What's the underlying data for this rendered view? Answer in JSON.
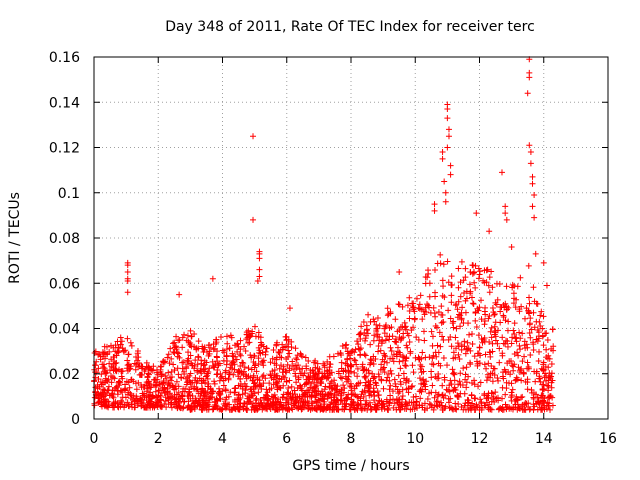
{
  "chart_data": {
    "type": "scatter",
    "title": "Day 348 of 2011, Rate Of TEC Index for receiver terc",
    "xlabel": "GPS time / hours",
    "ylabel": "ROTI / TECUs",
    "xlim": [
      0,
      16
    ],
    "ylim": [
      0,
      0.16
    ],
    "x_ticks": [
      0,
      2,
      4,
      6,
      8,
      10,
      12,
      14,
      16
    ],
    "y_ticks": [
      0,
      0.02,
      0.04,
      0.06,
      0.08,
      0.1,
      0.12,
      0.14,
      0.16
    ],
    "x_tick_labels": [
      "0",
      "2",
      "4",
      "6",
      "8",
      "10",
      "12",
      "14",
      "16"
    ],
    "y_tick_labels": [
      "0",
      "0.02",
      "0.04",
      "0.06",
      "0.08",
      "0.1",
      "0.12",
      "0.14",
      "0.16"
    ],
    "grid": true,
    "marker": "+",
    "color": "#ff0000",
    "data_range_x": [
      0,
      14.3
    ],
    "series": [
      {
        "name": "ROTI",
        "description": "dense point cloud; baseline ~0.005-0.03 TECU/s with spikes",
        "notable_points": [
          {
            "x": 1.05,
            "y": 0.069
          },
          {
            "x": 1.05,
            "y": 0.068
          },
          {
            "x": 1.05,
            "y": 0.065
          },
          {
            "x": 1.05,
            "y": 0.062
          },
          {
            "x": 1.05,
            "y": 0.061
          },
          {
            "x": 1.05,
            "y": 0.056
          },
          {
            "x": 2.65,
            "y": 0.055
          },
          {
            "x": 3.7,
            "y": 0.062
          },
          {
            "x": 4.95,
            "y": 0.125
          },
          {
            "x": 4.95,
            "y": 0.088
          },
          {
            "x": 5.15,
            "y": 0.074
          },
          {
            "x": 5.15,
            "y": 0.073
          },
          {
            "x": 5.15,
            "y": 0.071
          },
          {
            "x": 5.15,
            "y": 0.066
          },
          {
            "x": 5.15,
            "y": 0.063
          },
          {
            "x": 5.1,
            "y": 0.061
          },
          {
            "x": 6.1,
            "y": 0.049
          },
          {
            "x": 9.5,
            "y": 0.065
          },
          {
            "x": 10.6,
            "y": 0.095
          },
          {
            "x": 10.6,
            "y": 0.092
          },
          {
            "x": 10.85,
            "y": 0.118
          },
          {
            "x": 10.85,
            "y": 0.115
          },
          {
            "x": 10.9,
            "y": 0.105
          },
          {
            "x": 10.95,
            "y": 0.1
          },
          {
            "x": 10.95,
            "y": 0.096
          },
          {
            "x": 11.0,
            "y": 0.139
          },
          {
            "x": 11.0,
            "y": 0.137
          },
          {
            "x": 11.0,
            "y": 0.133
          },
          {
            "x": 11.05,
            "y": 0.128
          },
          {
            "x": 11.05,
            "y": 0.125
          },
          {
            "x": 11.0,
            "y": 0.12
          },
          {
            "x": 11.1,
            "y": 0.112
          },
          {
            "x": 11.1,
            "y": 0.108
          },
          {
            "x": 11.9,
            "y": 0.091
          },
          {
            "x": 12.3,
            "y": 0.083
          },
          {
            "x": 12.7,
            "y": 0.109
          },
          {
            "x": 12.8,
            "y": 0.094
          },
          {
            "x": 12.8,
            "y": 0.091
          },
          {
            "x": 12.85,
            "y": 0.088
          },
          {
            "x": 13.0,
            "y": 0.076
          },
          {
            "x": 13.55,
            "y": 0.159
          },
          {
            "x": 13.55,
            "y": 0.153
          },
          {
            "x": 13.55,
            "y": 0.151
          },
          {
            "x": 13.5,
            "y": 0.144
          },
          {
            "x": 13.55,
            "y": 0.121
          },
          {
            "x": 13.6,
            "y": 0.118
          },
          {
            "x": 13.6,
            "y": 0.113
          },
          {
            "x": 13.65,
            "y": 0.107
          },
          {
            "x": 13.65,
            "y": 0.104
          },
          {
            "x": 13.7,
            "y": 0.099
          },
          {
            "x": 13.65,
            "y": 0.094
          },
          {
            "x": 13.7,
            "y": 0.089
          },
          {
            "x": 13.75,
            "y": 0.073
          },
          {
            "x": 14.0,
            "y": 0.069
          },
          {
            "x": 14.1,
            "y": 0.059
          }
        ],
        "envelope": [
          {
            "x": 0.0,
            "lo": 0.006,
            "hi": 0.03
          },
          {
            "x": 0.5,
            "lo": 0.005,
            "hi": 0.034
          },
          {
            "x": 1.0,
            "lo": 0.005,
            "hi": 0.038
          },
          {
            "x": 1.5,
            "lo": 0.005,
            "hi": 0.028
          },
          {
            "x": 2.0,
            "lo": 0.005,
            "hi": 0.022
          },
          {
            "x": 2.5,
            "lo": 0.005,
            "hi": 0.036
          },
          {
            "x": 3.0,
            "lo": 0.004,
            "hi": 0.04
          },
          {
            "x": 3.5,
            "lo": 0.004,
            "hi": 0.032
          },
          {
            "x": 4.0,
            "lo": 0.004,
            "hi": 0.038
          },
          {
            "x": 4.5,
            "lo": 0.004,
            "hi": 0.036
          },
          {
            "x": 5.0,
            "lo": 0.004,
            "hi": 0.042
          },
          {
            "x": 5.5,
            "lo": 0.004,
            "hi": 0.032
          },
          {
            "x": 6.0,
            "lo": 0.004,
            "hi": 0.038
          },
          {
            "x": 6.5,
            "lo": 0.004,
            "hi": 0.028
          },
          {
            "x": 7.0,
            "lo": 0.004,
            "hi": 0.025
          },
          {
            "x": 7.5,
            "lo": 0.004,
            "hi": 0.03
          },
          {
            "x": 8.0,
            "lo": 0.004,
            "hi": 0.036
          },
          {
            "x": 8.5,
            "lo": 0.004,
            "hi": 0.046
          },
          {
            "x": 9.0,
            "lo": 0.004,
            "hi": 0.05
          },
          {
            "x": 9.5,
            "lo": 0.004,
            "hi": 0.052
          },
          {
            "x": 10.0,
            "lo": 0.004,
            "hi": 0.056
          },
          {
            "x": 10.5,
            "lo": 0.004,
            "hi": 0.07
          },
          {
            "x": 11.0,
            "lo": 0.004,
            "hi": 0.075
          },
          {
            "x": 11.5,
            "lo": 0.004,
            "hi": 0.07
          },
          {
            "x": 12.0,
            "lo": 0.004,
            "hi": 0.068
          },
          {
            "x": 12.5,
            "lo": 0.004,
            "hi": 0.065
          },
          {
            "x": 13.0,
            "lo": 0.004,
            "hi": 0.06
          },
          {
            "x": 13.5,
            "lo": 0.004,
            "hi": 0.07
          },
          {
            "x": 14.0,
            "lo": 0.004,
            "hi": 0.045
          },
          {
            "x": 14.3,
            "lo": 0.004,
            "hi": 0.04
          }
        ]
      }
    ]
  }
}
